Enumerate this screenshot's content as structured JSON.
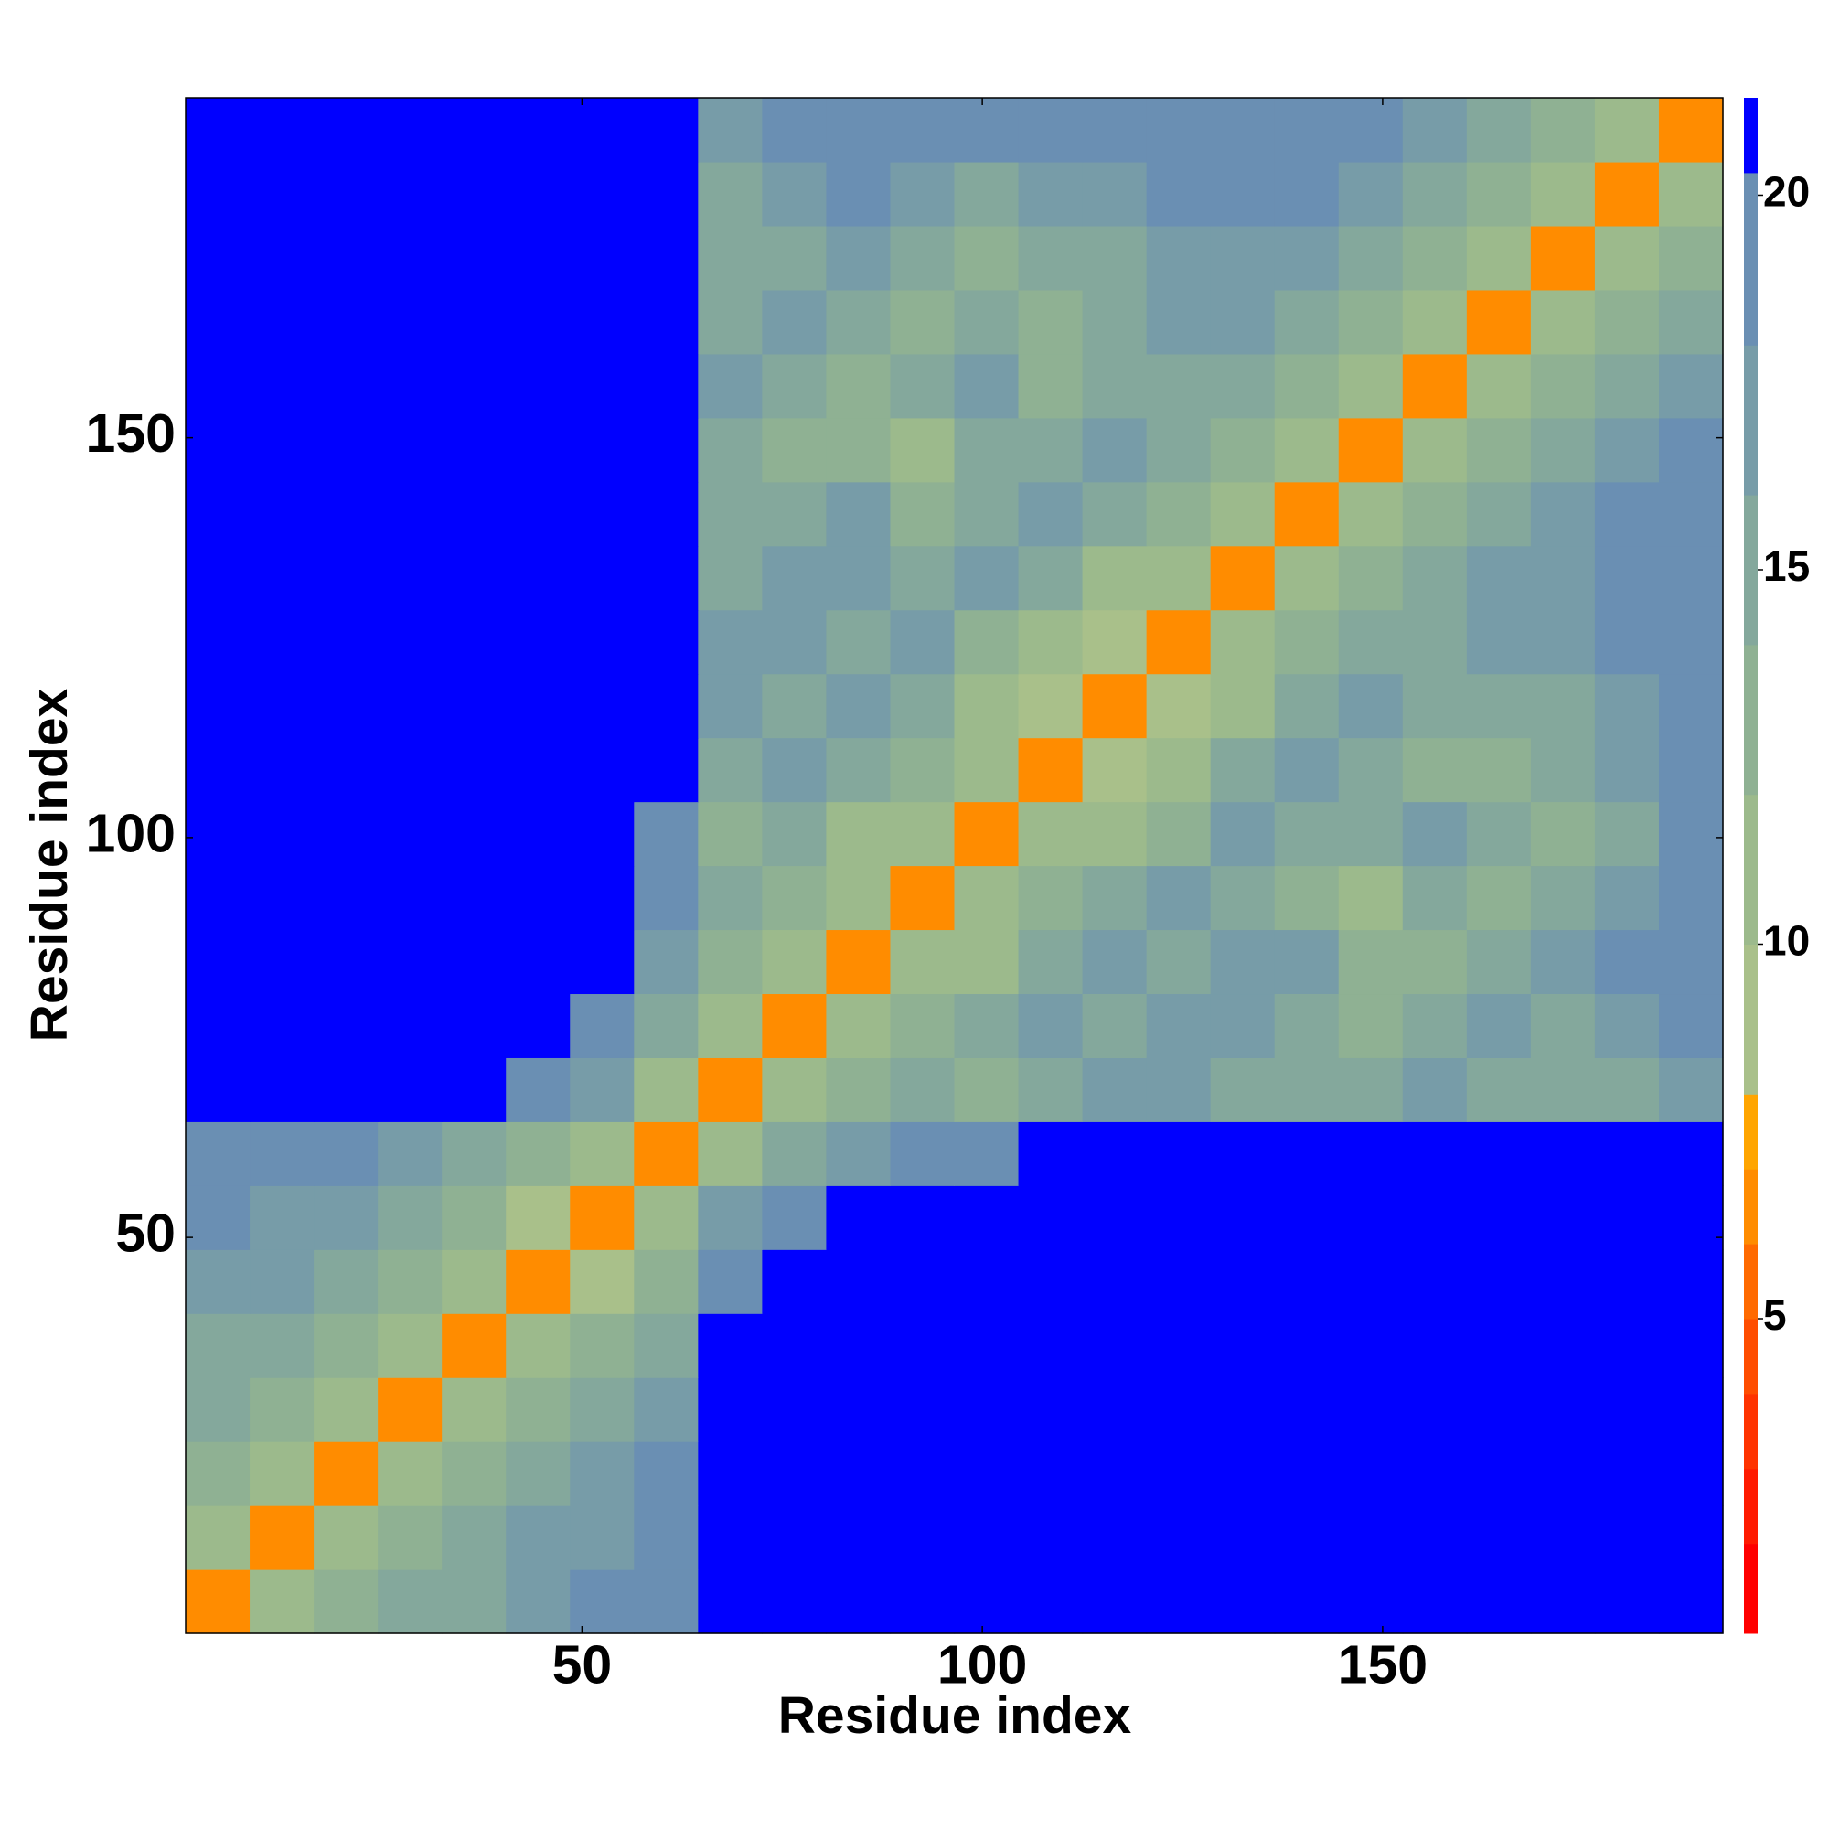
{
  "chart_data": {
    "type": "heatmap",
    "xlabel": "Residue index",
    "ylabel": "Residue index",
    "x": [
      4.5,
      12.5,
      20.5,
      28.5,
      36.5,
      44.5,
      52.5,
      60.5,
      68.5,
      76.5,
      84.5,
      92.5,
      100.5,
      108.5,
      116.5,
      124.5,
      132.5,
      140.5,
      148.5,
      156.5,
      164.5,
      172.5,
      180.5,
      188.5
    ],
    "y": [
      4.5,
      12.5,
      20.5,
      28.5,
      36.5,
      44.5,
      52.5,
      60.5,
      68.5,
      76.5,
      84.5,
      92.5,
      100.5,
      108.5,
      116.5,
      124.5,
      132.5,
      140.5,
      148.5,
      156.5,
      164.5,
      172.5,
      180.5,
      188.5
    ],
    "cell_size": 8,
    "z": [
      [
        6,
        11,
        12,
        14,
        15,
        17,
        18,
        19,
        21,
        21,
        21,
        21,
        21,
        21,
        21,
        21,
        21,
        21,
        21,
        21,
        21,
        21,
        21,
        21
      ],
      [
        11,
        6,
        11,
        12,
        14,
        16,
        17,
        19,
        21,
        21,
        21,
        21,
        21,
        21,
        21,
        21,
        21,
        21,
        21,
        21,
        21,
        21,
        21,
        21
      ],
      [
        12,
        11,
        6,
        10,
        12,
        15,
        16,
        18,
        21,
        21,
        21,
        21,
        21,
        21,
        21,
        21,
        21,
        21,
        21,
        21,
        21,
        21,
        21,
        21
      ],
      [
        14,
        12,
        10,
        6,
        11,
        12,
        14,
        17,
        21,
        21,
        21,
        21,
        21,
        21,
        21,
        21,
        21,
        21,
        21,
        21,
        21,
        21,
        21,
        21
      ],
      [
        15,
        14,
        12,
        11,
        6,
        10,
        12,
        15,
        21,
        21,
        21,
        21,
        21,
        21,
        21,
        21,
        21,
        21,
        21,
        21,
        21,
        21,
        21,
        21
      ],
      [
        17,
        16,
        15,
        12,
        10,
        6,
        9,
        13,
        19,
        21,
        21,
        21,
        21,
        21,
        21,
        21,
        21,
        21,
        21,
        21,
        21,
        21,
        21,
        21
      ],
      [
        18,
        17,
        16,
        14,
        12,
        9,
        6,
        11,
        17,
        19,
        21,
        21,
        21,
        21,
        21,
        21,
        21,
        21,
        21,
        21,
        21,
        21,
        21,
        21
      ],
      [
        19,
        19,
        18,
        17,
        15,
        13,
        11,
        6,
        11,
        14,
        16,
        18,
        19,
        21,
        21,
        21,
        21,
        21,
        21,
        21,
        21,
        21,
        21,
        21
      ],
      [
        21,
        21,
        21,
        21,
        21,
        19,
        17,
        11,
        6,
        10,
        13,
        14,
        13,
        15,
        16,
        16,
        15,
        14,
        14,
        16,
        15,
        15,
        14,
        17
      ],
      [
        21,
        21,
        21,
        21,
        21,
        21,
        19,
        14,
        10,
        6,
        10,
        12,
        14,
        16,
        15,
        17,
        16,
        15,
        12,
        15,
        16,
        14,
        16,
        18
      ],
      [
        21,
        21,
        21,
        21,
        21,
        21,
        21,
        16,
        13,
        10,
        6,
        10,
        11,
        14,
        16,
        15,
        17,
        16,
        13,
        12,
        14,
        16,
        18,
        20
      ],
      [
        21,
        21,
        21,
        21,
        21,
        21,
        21,
        18,
        14,
        12,
        10,
        6,
        10,
        12,
        14,
        16,
        15,
        13,
        11,
        14,
        13,
        15,
        17,
        19
      ],
      [
        21,
        21,
        21,
        21,
        21,
        21,
        21,
        19,
        13,
        14,
        11,
        10,
        6,
        10,
        11,
        13,
        16,
        15,
        14,
        16,
        14,
        12,
        15,
        18
      ],
      [
        21,
        21,
        21,
        21,
        21,
        21,
        21,
        21,
        15,
        16,
        14,
        12,
        10,
        6,
        9,
        11,
        14,
        16,
        15,
        13,
        12,
        14,
        16,
        19
      ],
      [
        21,
        21,
        21,
        21,
        21,
        21,
        21,
        21,
        16,
        15,
        16,
        14,
        11,
        9,
        6,
        9,
        11,
        14,
        16,
        15,
        14,
        15,
        17,
        20
      ],
      [
        21,
        21,
        21,
        21,
        21,
        21,
        21,
        21,
        16,
        17,
        15,
        16,
        13,
        11,
        9,
        6,
        10,
        12,
        15,
        14,
        16,
        17,
        18,
        20
      ],
      [
        21,
        21,
        21,
        21,
        21,
        21,
        21,
        21,
        15,
        16,
        17,
        15,
        16,
        14,
        11,
        10,
        6,
        10,
        12,
        15,
        16,
        17,
        19,
        20
      ],
      [
        21,
        21,
        21,
        21,
        21,
        21,
        21,
        21,
        14,
        15,
        16,
        13,
        15,
        16,
        14,
        12,
        10,
        6,
        10,
        13,
        14,
        16,
        18,
        20
      ],
      [
        21,
        21,
        21,
        21,
        21,
        21,
        21,
        21,
        14,
        12,
        13,
        11,
        14,
        15,
        16,
        15,
        12,
        10,
        6,
        10,
        12,
        15,
        16,
        18
      ],
      [
        21,
        21,
        21,
        21,
        21,
        21,
        21,
        21,
        16,
        15,
        12,
        14,
        16,
        13,
        15,
        14,
        15,
        13,
        10,
        6,
        10,
        12,
        14,
        17
      ],
      [
        21,
        21,
        21,
        21,
        21,
        21,
        21,
        21,
        15,
        16,
        14,
        13,
        14,
        12,
        14,
        16,
        16,
        14,
        12,
        10,
        6,
        10,
        12,
        15
      ],
      [
        21,
        21,
        21,
        21,
        21,
        21,
        21,
        21,
        15,
        14,
        16,
        15,
        12,
        14,
        15,
        17,
        17,
        16,
        15,
        12,
        10,
        6,
        10,
        13
      ],
      [
        21,
        21,
        21,
        21,
        21,
        21,
        21,
        21,
        14,
        16,
        18,
        17,
        15,
        16,
        17,
        18,
        19,
        18,
        16,
        14,
        12,
        10,
        6,
        11
      ],
      [
        21,
        21,
        21,
        21,
        21,
        21,
        21,
        21,
        17,
        18,
        20,
        19,
        18,
        19,
        20,
        20,
        20,
        20,
        18,
        17,
        15,
        13,
        11,
        6
      ]
    ],
    "xlim": [
      0.5,
      192.5
    ],
    "ylim": [
      0.5,
      192.5
    ],
    "xticks": [
      50,
      100,
      150
    ],
    "yticks": [
      50,
      100,
      150
    ],
    "zlim": [
      0.8,
      21.3
    ],
    "zticks": [
      5,
      10,
      15,
      20
    ],
    "levels": [
      0.8,
      2,
      3,
      4,
      5,
      6,
      7,
      8,
      10,
      12,
      14,
      16,
      18,
      20.3,
      21.3
    ],
    "colors": [
      "#ff0000",
      "#ff1a00",
      "#ff3300",
      "#ff4d00",
      "#ff6a00",
      "#ff8c00",
      "#ffa500",
      "#a9c08a",
      "#9cba8c",
      "#8fb193",
      "#84a89c",
      "#779ca8",
      "#6a8fb3",
      "#0000ff"
    ]
  }
}
